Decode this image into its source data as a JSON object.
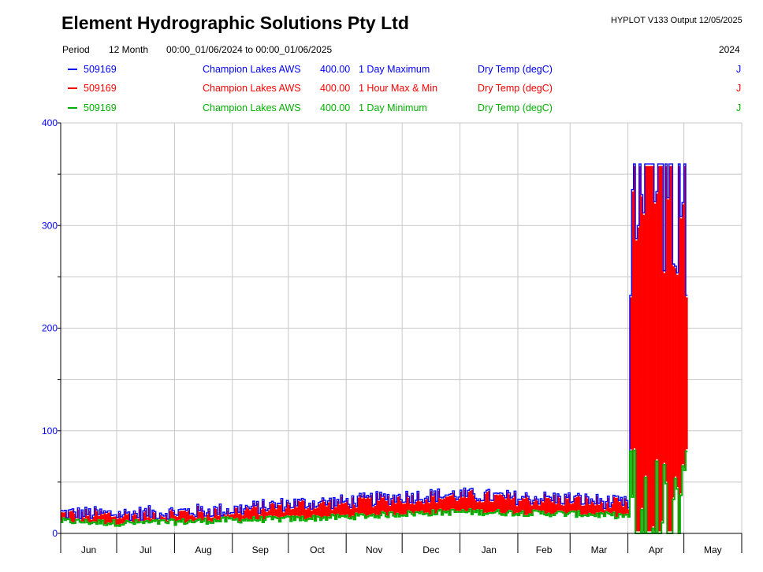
{
  "header": {
    "company": "Element Hydrographic Solutions Pty Ltd",
    "version": "HYPLOT V133  Output 12/05/2025",
    "period_label": "Period",
    "period_value": "12 Month",
    "range": "00:00_01/06/2024 to 00:00_01/06/2025",
    "year": "2024"
  },
  "legend": [
    {
      "site": "509169",
      "station": "Champion Lakes AWS",
      "scale": "400.00",
      "stat": "1 Day Maximum",
      "variable": "Dry Temp (degC)",
      "flag": "J",
      "color": "#0000ff"
    },
    {
      "site": "509169",
      "station": "Champion Lakes AWS",
      "scale": "400.00",
      "stat": "1 Hour Max & Min",
      "variable": "Dry Temp (degC)",
      "flag": "J",
      "color": "#ff0000"
    },
    {
      "site": "509169",
      "station": "Champion Lakes AWS",
      "scale": "400.00",
      "stat": "1 Day Minimum",
      "variable": "Dry Temp (degC)",
      "flag": "J",
      "color": "#00b000"
    }
  ],
  "chart_data": {
    "type": "line",
    "ylim": [
      0,
      400
    ],
    "yticks": [
      "0",
      "100",
      "200",
      "300",
      "400"
    ],
    "categories": [
      "Jun",
      "Jul",
      "Aug",
      "Sep",
      "Oct",
      "Nov",
      "Dec",
      "Jan",
      "Feb",
      "Mar",
      "Apr",
      "May"
    ],
    "grid": true,
    "series": [
      {
        "name": "1 Day Maximum",
        "color": "#0000ff",
        "x": [
          "Jun",
          "Jul",
          "Aug",
          "Sep",
          "Oct",
          "Nov",
          "Dec",
          "Jan",
          "Feb",
          "Mar",
          "Apr early",
          "Apr late",
          "May"
        ],
        "values": [
          20,
          19,
          21,
          23,
          29,
          31,
          36,
          38,
          35,
          34,
          29,
          360,
          232
        ]
      },
      {
        "name": "1 Hour Max & Min",
        "color": "#ff0000",
        "x": [
          "Jun",
          "Jul",
          "Aug",
          "Sep",
          "Oct",
          "Nov",
          "Dec",
          "Jan",
          "Feb",
          "Mar",
          "Apr early",
          "Apr late",
          "May"
        ],
        "values": [
          17,
          16,
          18,
          20,
          25,
          27,
          31,
          33,
          31,
          30,
          27,
          358,
          180
        ]
      },
      {
        "name": "1 Day Minimum",
        "color": "#00b000",
        "x": [
          "Jun",
          "Jul",
          "Aug",
          "Sep",
          "Oct",
          "Nov",
          "Dec",
          "Jan",
          "Feb",
          "Mar",
          "Apr early",
          "Apr late",
          "May"
        ],
        "values": [
          12,
          10,
          11,
          13,
          14,
          16,
          19,
          21,
          20,
          19,
          17,
          0,
          80
        ]
      }
    ]
  }
}
